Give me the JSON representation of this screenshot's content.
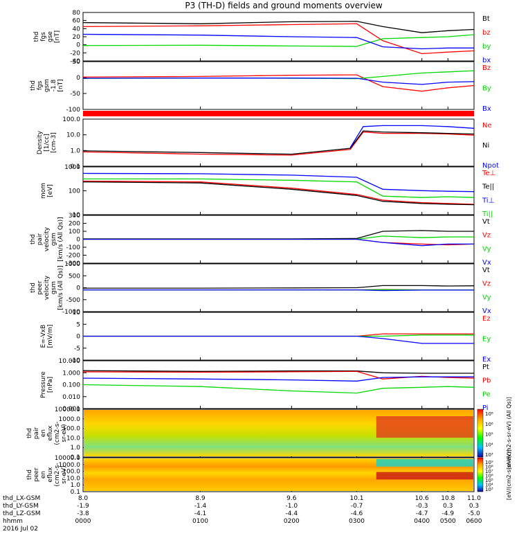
{
  "title": "P3 (TH-D) fields and ground moments overview",
  "colors": {
    "black": "#000000",
    "red": "#ff0000",
    "green": "#00d800",
    "blue": "#0000ff",
    "frame": "#000000"
  },
  "chart_data": [
    {
      "id": "fgs_total",
      "type": "line",
      "ylabel_lines": [
        "thd",
        "fgs",
        "gse",
        "[nT]"
      ],
      "ylim": [
        -40,
        80
      ],
      "yticks": [
        "80",
        "60",
        "40",
        "20",
        "0",
        "-20",
        "-40"
      ],
      "legend": [
        {
          "label": "Bt",
          "color": "black"
        },
        {
          "label": "bz",
          "color": "red"
        },
        {
          "label": "by",
          "color": "green"
        },
        {
          "label": "bx",
          "color": "blue"
        }
      ],
      "series": [
        {
          "name": "Bt",
          "color": "black",
          "x": [
            8.0,
            8.9,
            9.6,
            10.1,
            10.3,
            10.6,
            10.8,
            11.0
          ],
          "y": [
            55,
            52,
            57,
            58,
            45,
            30,
            35,
            38
          ]
        },
        {
          "name": "bz",
          "color": "red",
          "x": [
            8.0,
            8.9,
            9.6,
            10.1,
            10.3,
            10.6,
            10.8,
            11.0
          ],
          "y": [
            45,
            47,
            50,
            52,
            10,
            -22,
            -18,
            -15
          ]
        },
        {
          "name": "by",
          "color": "green",
          "x": [
            8.0,
            8.9,
            9.6,
            10.1,
            10.3,
            10.6,
            10.8,
            11.0
          ],
          "y": [
            -2,
            -1,
            -3,
            -4,
            15,
            18,
            20,
            25
          ]
        },
        {
          "name": "bx",
          "color": "blue",
          "x": [
            8.0,
            8.9,
            9.6,
            10.1,
            10.3,
            10.6,
            10.8,
            11.0
          ],
          "y": [
            26,
            24,
            20,
            18,
            -5,
            -10,
            -8,
            -8
          ]
        }
      ]
    },
    {
      "id": "fgs_gsm",
      "type": "line",
      "ylabel_lines": [
        "thd",
        "fgs",
        "gsm",
        "-1.8",
        "[nT]"
      ],
      "ylim": [
        -140,
        70
      ],
      "yticks": [
        "50",
        "0",
        "-50",
        "-100"
      ],
      "legend": [
        {
          "label": "Bz",
          "color": "red"
        },
        {
          "label": "By",
          "color": "green"
        },
        {
          "label": "Bx",
          "color": "blue"
        }
      ],
      "series": [
        {
          "name": "Bz",
          "color": "red",
          "x": [
            8.0,
            8.9,
            9.6,
            10.1,
            10.3,
            10.6,
            10.8,
            11.0
          ],
          "y": [
            2,
            5,
            10,
            12,
            -40,
            -60,
            -45,
            -35
          ]
        },
        {
          "name": "By",
          "color": "green",
          "x": [
            8.0,
            8.9,
            9.6,
            10.1,
            10.3,
            10.6,
            10.8,
            11.0
          ],
          "y": [
            -4,
            -2,
            -3,
            -5,
            5,
            20,
            25,
            30
          ]
        },
        {
          "name": "Bx",
          "color": "blue",
          "x": [
            8.0,
            8.9,
            9.6,
            10.1,
            10.3,
            10.6,
            10.8,
            11.0
          ],
          "y": [
            -3,
            -2,
            -2,
            -3,
            -20,
            -30,
            -20,
            -18
          ]
        }
      ]
    },
    {
      "id": "density",
      "type": "line",
      "log": true,
      "ylabel_lines": [
        "Density",
        "[1/cc]",
        "[cm-3]"
      ],
      "ylim": [
        0.1,
        200
      ],
      "yticks": [
        "100.0",
        "10.0",
        "1.0",
        "0.1"
      ],
      "legend": [
        {
          "label": "Ne",
          "color": "red"
        },
        {
          "label": "Ni",
          "color": "black"
        },
        {
          "label": "Npot",
          "color": "blue"
        }
      ],
      "series": [
        {
          "name": "Ne",
          "color": "red",
          "x": [
            8.0,
            8.9,
            9.6,
            10.05,
            10.15,
            10.3,
            10.6,
            10.8,
            11.0
          ],
          "y": [
            1.0,
            0.7,
            0.6,
            1.5,
            25,
            20,
            20,
            18,
            15
          ]
        },
        {
          "name": "Ni",
          "color": "black",
          "x": [
            8.0,
            8.9,
            9.6,
            10.05,
            10.15,
            10.3,
            10.6,
            10.8,
            11.0
          ],
          "y": [
            1.2,
            0.9,
            0.7,
            1.8,
            30,
            25,
            22,
            20,
            18
          ]
        },
        {
          "name": "Npot",
          "color": "blue",
          "x": [
            10.05,
            10.15,
            10.3,
            10.6,
            10.8,
            11.0
          ],
          "y": [
            2,
            60,
            70,
            70,
            60,
            45
          ]
        }
      ]
    },
    {
      "id": "temperature",
      "type": "line",
      "log": true,
      "ylabel_lines": [
        "mom",
        "[eV]"
      ],
      "ylim": [
        10,
        6000
      ],
      "yticks": [
        "1000",
        "100",
        "10"
      ],
      "legend": [
        {
          "label": "Te⊥",
          "color": "red"
        },
        {
          "label": "Te||",
          "color": "black"
        },
        {
          "label": "Ti⊥",
          "color": "blue"
        },
        {
          "label": "Ti||",
          "color": "green"
        }
      ],
      "series": [
        {
          "name": "Te⊥",
          "color": "red",
          "x": [
            8.0,
            8.9,
            9.6,
            10.1,
            10.3,
            10.6,
            10.8,
            11.0
          ],
          "y": [
            900,
            800,
            350,
            150,
            70,
            50,
            45,
            40
          ]
        },
        {
          "name": "Te||",
          "color": "black",
          "x": [
            8.0,
            8.9,
            9.6,
            10.1,
            10.3,
            10.6,
            10.8,
            11.0
          ],
          "y": [
            800,
            700,
            300,
            130,
            60,
            45,
            40,
            38
          ]
        },
        {
          "name": "Ti⊥",
          "color": "blue",
          "x": [
            8.0,
            8.9,
            9.6,
            10.1,
            10.3,
            10.6,
            10.8,
            11.0
          ],
          "y": [
            2500,
            2400,
            2000,
            1500,
            300,
            250,
            230,
            220
          ]
        },
        {
          "name": "Ti||",
          "color": "green",
          "x": [
            8.0,
            8.9,
            9.6,
            10.1,
            10.3,
            10.6,
            10.8,
            11.0
          ],
          "y": [
            1200,
            1200,
            1000,
            800,
            120,
            100,
            110,
            100
          ]
        }
      ]
    },
    {
      "id": "pair_velocity",
      "type": "line",
      "ylabel_lines": [
        "thd",
        "pair",
        "velocity",
        "gsm",
        "[km/s (All Qs)]"
      ],
      "ylim": [
        -300,
        300
      ],
      "yticks": [
        "300",
        "200",
        "100",
        "0",
        "-100",
        "-200",
        "-300"
      ],
      "legend": [
        {
          "label": "Vt",
          "color": "black"
        },
        {
          "label": "Vz",
          "color": "red"
        },
        {
          "label": "Vy",
          "color": "green"
        },
        {
          "label": "Vx",
          "color": "blue"
        }
      ],
      "series": [
        {
          "name": "Vt",
          "color": "black",
          "x": [
            8.0,
            8.9,
            9.6,
            10.1,
            10.3,
            10.6,
            10.8,
            11.0
          ],
          "y": [
            5,
            5,
            5,
            10,
            100,
            110,
            100,
            100
          ]
        },
        {
          "name": "Vz",
          "color": "red",
          "x": [
            8.0,
            8.9,
            9.6,
            10.1,
            10.3,
            10.6,
            10.8,
            11.0
          ],
          "y": [
            0,
            0,
            0,
            0,
            -40,
            -60,
            -70,
            -60
          ]
        },
        {
          "name": "Vy",
          "color": "green",
          "x": [
            8.0,
            8.9,
            9.6,
            10.1,
            10.3,
            10.6,
            10.8,
            11.0
          ],
          "y": [
            0,
            0,
            0,
            0,
            40,
            20,
            30,
            30
          ]
        },
        {
          "name": "Vx",
          "color": "blue",
          "x": [
            8.0,
            8.9,
            9.6,
            10.1,
            10.3,
            10.6,
            10.8,
            11.0
          ],
          "y": [
            0,
            0,
            0,
            0,
            -40,
            -80,
            -60,
            -60
          ]
        }
      ]
    },
    {
      "id": "peer_velocity",
      "type": "line",
      "ylabel_lines": [
        "thd",
        "peer",
        "velocity",
        "gsm",
        "[km/s (All Qs)]"
      ],
      "ylim": [
        -1000,
        1200
      ],
      "yticks": [
        "1000",
        "500",
        "0",
        "-500",
        "-1000"
      ],
      "legend": [
        {
          "label": "Vt",
          "color": "black"
        },
        {
          "label": "Vz",
          "color": "red"
        },
        {
          "label": "Vy",
          "color": "green"
        },
        {
          "label": "Vx",
          "color": "blue"
        }
      ],
      "series": [
        {
          "name": "Vt",
          "color": "black",
          "x": [
            8.0,
            8.9,
            9.6,
            10.1,
            10.3,
            10.6,
            10.8,
            11.0
          ],
          "y": [
            80,
            80,
            90,
            100,
            200,
            200,
            180,
            190
          ]
        },
        {
          "name": "Vz",
          "color": "red",
          "x": [
            8.0,
            8.9,
            9.6,
            10.1,
            10.3,
            10.6,
            10.8,
            11.0
          ],
          "y": [
            0,
            0,
            0,
            0,
            20,
            0,
            0,
            0
          ]
        },
        {
          "name": "Vy",
          "color": "green",
          "x": [
            8.0,
            8.9,
            9.6,
            10.1,
            10.3,
            10.6,
            10.8,
            11.0
          ],
          "y": [
            0,
            0,
            0,
            0,
            10,
            0,
            0,
            0
          ]
        },
        {
          "name": "Vx",
          "color": "blue",
          "x": [
            8.0,
            8.9,
            9.6,
            10.1,
            10.3,
            10.6,
            10.8,
            11.0
          ],
          "y": [
            0,
            0,
            0,
            0,
            -30,
            -10,
            -10,
            -10
          ]
        }
      ]
    },
    {
      "id": "efield",
      "type": "line",
      "ylabel_lines": [
        "E=-VxB",
        "[mV/m]"
      ],
      "ylim": [
        -10,
        10
      ],
      "yticks": [
        "10",
        "5",
        "0",
        "-5",
        "-10"
      ],
      "legend": [
        {
          "label": "Ez",
          "color": "red"
        },
        {
          "label": "Ey",
          "color": "green"
        },
        {
          "label": "Ex",
          "color": "blue"
        }
      ],
      "series": [
        {
          "name": "Ez",
          "color": "red",
          "x": [
            8.0,
            8.9,
            9.6,
            10.1,
            10.3,
            10.6,
            10.8,
            11.0
          ],
          "y": [
            0,
            0,
            0,
            0,
            1,
            1,
            1,
            1
          ]
        },
        {
          "name": "Ey",
          "color": "green",
          "x": [
            8.0,
            8.9,
            9.6,
            10.1,
            10.3,
            10.6,
            10.8,
            11.0
          ],
          "y": [
            0,
            0,
            0,
            0,
            0,
            0.5,
            0.5,
            0.5
          ]
        },
        {
          "name": "Ex",
          "color": "blue",
          "x": [
            8.0,
            8.9,
            9.6,
            10.1,
            10.3,
            10.6,
            10.8,
            11.0
          ],
          "y": [
            0,
            0,
            0,
            0,
            -1,
            -3,
            -3,
            -3
          ]
        }
      ]
    },
    {
      "id": "pressure",
      "type": "line",
      "log": true,
      "ylabel_lines": [
        "Pressure",
        "[nPa]"
      ],
      "ylim": [
        0.001,
        10
      ],
      "yticks": [
        "10.000",
        "1.000",
        "0.100",
        "0.010",
        "0.001"
      ],
      "legend": [
        {
          "label": "Pt",
          "color": "black"
        },
        {
          "label": "Pb",
          "color": "red"
        },
        {
          "label": "Pe",
          "color": "green"
        },
        {
          "label": "Pi",
          "color": "blue"
        }
      ],
      "series": [
        {
          "name": "Pt",
          "color": "black",
          "x": [
            8.0,
            8.9,
            9.6,
            10.1,
            10.3,
            10.6,
            10.8,
            11.0
          ],
          "y": [
            1.5,
            1.3,
            1.4,
            1.4,
            1.0,
            0.9,
            0.9,
            0.9
          ]
        },
        {
          "name": "Pb",
          "color": "red",
          "x": [
            8.0,
            8.9,
            9.6,
            10.1,
            10.3,
            10.6,
            10.8,
            11.0
          ],
          "y": [
            1.2,
            1.1,
            1.2,
            1.3,
            0.3,
            0.5,
            0.4,
            0.35
          ]
        },
        {
          "name": "Pe",
          "color": "green",
          "x": [
            8.0,
            8.9,
            9.6,
            10.1,
            10.3,
            10.6,
            10.8,
            11.0
          ],
          "y": [
            0.1,
            0.07,
            0.03,
            0.02,
            0.05,
            0.06,
            0.07,
            0.06
          ]
        },
        {
          "name": "Pi",
          "color": "blue",
          "x": [
            8.0,
            8.9,
            9.6,
            10.1,
            10.3,
            10.6,
            10.8,
            11.0
          ],
          "y": [
            0.35,
            0.3,
            0.25,
            0.2,
            0.4,
            0.45,
            0.45,
            0.45
          ]
        }
      ]
    },
    {
      "id": "pair_spec",
      "type": "heatmap",
      "ylabel_lines": [
        "thd",
        "pair",
        "en",
        "eflux",
        "(cm2-s-",
        "sr-eV)"
      ],
      "yticks": [
        "10000.0",
        "1000.0",
        "100.0",
        "10.0",
        "1.0",
        "0.1"
      ],
      "colorbar": {
        "ticks": [
          "10⁸",
          "10⁶",
          "10⁵",
          "10⁴",
          "10³"
        ],
        "label": "[eV/(cm2-s-sr-eV) (All Qs)]"
      }
    },
    {
      "id": "peer_spec",
      "type": "heatmap",
      "ylabel_lines": [
        "thd",
        "peer",
        "en",
        "eflux",
        "(cm2-s-",
        "sr-eV)"
      ],
      "yticks": [
        "10000.0",
        "1000.0",
        "100.0",
        "10.0",
        "1.0",
        "0.1"
      ],
      "colorbar": {
        "ticks": [
          "10⁹",
          "10⁸",
          "10⁷",
          "10⁶",
          "10⁵",
          "10⁴",
          "10³"
        ],
        "label": "[eV/(cm2-s-sr-eV)]"
      }
    }
  ],
  "xaxis": {
    "rows": [
      {
        "label": "thd_LX-GSM",
        "values": [
          "8.0",
          "8.9",
          "9.6",
          "10.1",
          "10.6",
          "10.8",
          "11.0"
        ]
      },
      {
        "label": "thd_LY-GSM",
        "values": [
          "-1.9",
          "-1.4",
          "-1.0",
          "-0.7",
          "-0.3",
          "0.3",
          "0.3"
        ]
      },
      {
        "label": "thd_LZ-GSM",
        "values": [
          "-3.8",
          "-4.1",
          "-4.4",
          "-4.6",
          "-4.7",
          "-4.9",
          "-5.0"
        ]
      },
      {
        "label": "hhmm",
        "values": [
          "0000",
          "0100",
          "0200",
          "0300",
          "0400",
          "0500",
          "0600"
        ]
      }
    ],
    "date": "2016 Jul 02",
    "range": [
      8.0,
      11.0
    ]
  }
}
